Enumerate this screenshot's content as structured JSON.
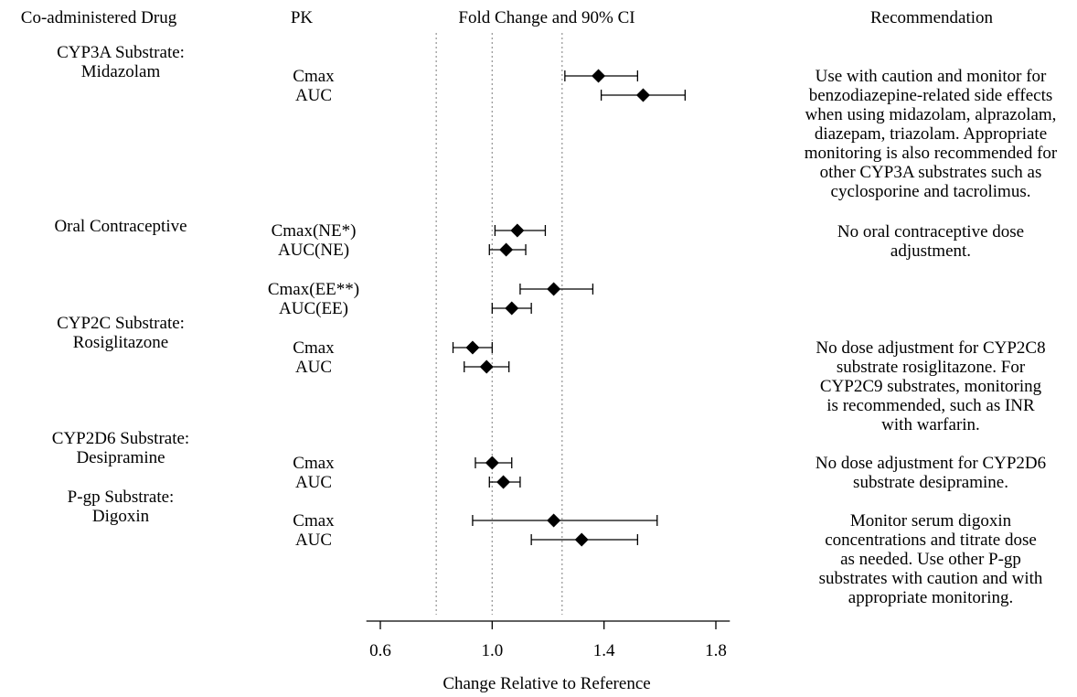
{
  "headers": {
    "drug": "Co-administered Drug",
    "pk": "PK",
    "fold": "Fold Change and 90% CI",
    "rec": "Recommendation"
  },
  "drugs": [
    {
      "lines": [
        "CYP3A Substrate:",
        "Midazolam"
      ]
    },
    {
      "lines": [
        "Oral Contraceptive"
      ]
    },
    {
      "lines": [
        "CYP2C Substrate:",
        "Rosiglitazone"
      ]
    },
    {
      "lines": [
        "CYP2D6 Substrate:",
        "Desipramine"
      ]
    },
    {
      "lines": [
        "P-gp Substrate:",
        "Digoxin"
      ]
    }
  ],
  "recommendations": [
    {
      "lines": [
        "Use with caution and monitor for",
        "benzodiazepine-related side effects",
        "when using midazolam, alprazolam,",
        "diazepam, triazolam. Appropriate",
        "monitoring is also recommended for",
        "other CYP3A substrates such as",
        "cyclosporine and  tacrolimus."
      ]
    },
    {
      "lines": [
        "No oral contraceptive dose",
        "adjustment."
      ]
    },
    {
      "lines": [
        "No dose adjustment for CYP2C8",
        "substrate rosiglitazone. For",
        "CYP2C9 substrates, monitoring",
        "is recommended, such as INR",
        "with warfarin."
      ]
    },
    {
      "lines": [
        "No dose adjustment for CYP2D6",
        "substrate desipramine."
      ]
    },
    {
      "lines": [
        "Monitor serum digoxin",
        "concentrations and titrate dose",
        "as needed. Use other P-gp",
        "substrates with caution and with",
        "appropriate monitoring."
      ]
    }
  ],
  "chart_data": {
    "type": "forest",
    "xlabel": "Change Relative to Reference",
    "xlim": [
      0.55,
      1.85
    ],
    "xticks": [
      0.6,
      1.0,
      1.4,
      1.8
    ],
    "xtick_labels": [
      "0.6",
      "1.0",
      "1.4",
      "1.8"
    ],
    "reference_lines": [
      0.8,
      1.0,
      1.25
    ],
    "rows": [
      {
        "drug_group": 0,
        "pk": "Cmax",
        "estimate": 1.38,
        "ci_low": 1.26,
        "ci_high": 1.52
      },
      {
        "drug_group": 0,
        "pk": "AUC",
        "estimate": 1.54,
        "ci_low": 1.39,
        "ci_high": 1.69
      },
      {
        "drug_group": 1,
        "pk": "Cmax(NE*)",
        "estimate": 1.09,
        "ci_low": 1.01,
        "ci_high": 1.19
      },
      {
        "drug_group": 1,
        "pk": "AUC(NE)",
        "estimate": 1.05,
        "ci_low": 0.99,
        "ci_high": 1.12
      },
      {
        "drug_group": 1,
        "pk": "Cmax(EE**)",
        "estimate": 1.22,
        "ci_low": 1.1,
        "ci_high": 1.36
      },
      {
        "drug_group": 1,
        "pk": "AUC(EE)",
        "estimate": 1.07,
        "ci_low": 1.0,
        "ci_high": 1.14
      },
      {
        "drug_group": 2,
        "pk": "Cmax",
        "estimate": 0.93,
        "ci_low": 0.86,
        "ci_high": 1.0
      },
      {
        "drug_group": 2,
        "pk": "AUC",
        "estimate": 0.98,
        "ci_low": 0.9,
        "ci_high": 1.06
      },
      {
        "drug_group": 3,
        "pk": "Cmax",
        "estimate": 1.0,
        "ci_low": 0.94,
        "ci_high": 1.07
      },
      {
        "drug_group": 3,
        "pk": "AUC",
        "estimate": 1.04,
        "ci_low": 0.99,
        "ci_high": 1.1
      },
      {
        "drug_group": 4,
        "pk": "Cmax",
        "estimate": 1.22,
        "ci_low": 0.93,
        "ci_high": 1.59
      },
      {
        "drug_group": 4,
        "pk": "AUC",
        "estimate": 1.32,
        "ci_low": 1.14,
        "ci_high": 1.52
      }
    ]
  }
}
